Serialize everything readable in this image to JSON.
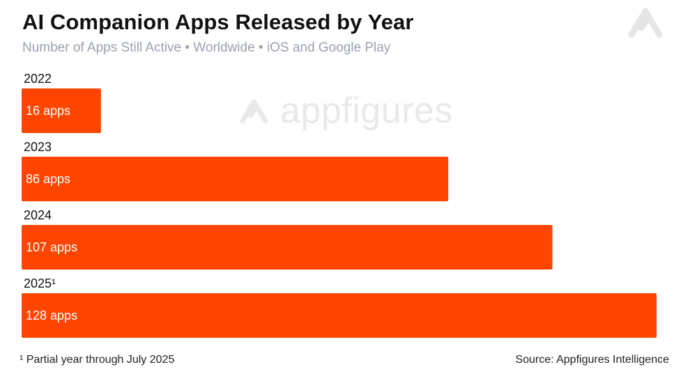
{
  "header": {
    "title": "AI Companion Apps Released by Year",
    "subtitle": "Number of Apps Still Active • Worldwide • iOS and Google Play"
  },
  "watermark": {
    "text": "appfigures",
    "icon": "appfigures-logo-icon"
  },
  "corner_logo": {
    "icon": "appfigures-logo-icon"
  },
  "colors": {
    "bar": "#ff4500",
    "watermark": "#e7e7e7"
  },
  "chart_data": {
    "type": "bar",
    "orientation": "horizontal",
    "categories": [
      "2022",
      "2023",
      "2024",
      "2025¹"
    ],
    "values": [
      16,
      86,
      107,
      128
    ],
    "data_labels": [
      "16 apps",
      "86 apps",
      "107 apps",
      "128 apps"
    ],
    "xlim": [
      0,
      128
    ],
    "grid": false,
    "legend": "none"
  },
  "footer": {
    "footnote": "¹ Partial year through July 2025",
    "source": "Source: Appfigures Intelligence"
  }
}
